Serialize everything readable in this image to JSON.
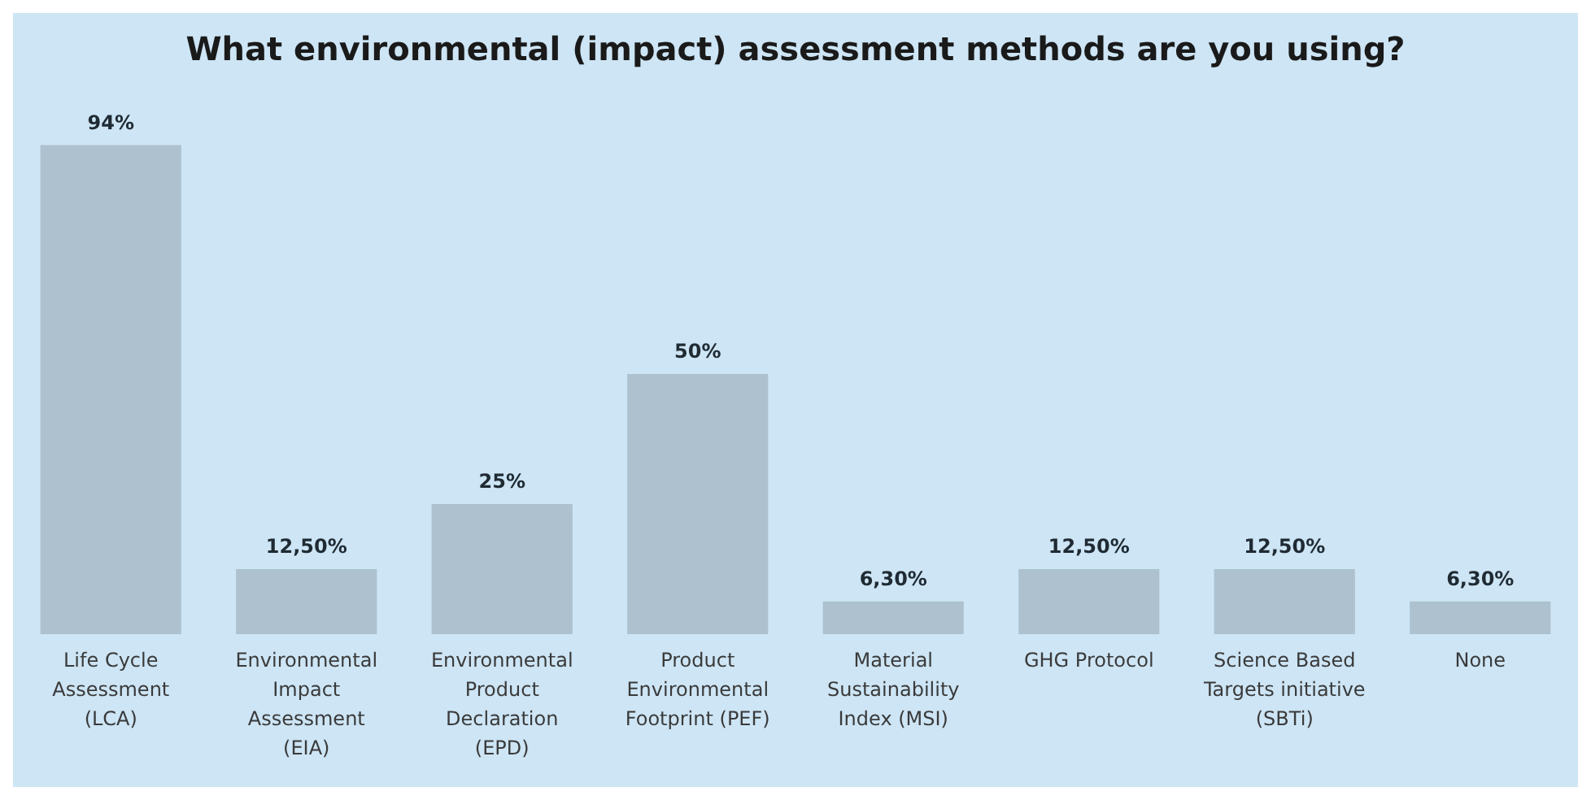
{
  "chart_data": {
    "type": "bar",
    "title": "What environmental (impact) assessment methods are you using?",
    "categories": [
      "Life Cycle Assessment (LCA)",
      "Environmental Impact Assessment (EIA)",
      "Environmental Product Declaration (EPD)",
      "Product Environmental Footprint (PEF)",
      "Material Sustainability Index (MSI)",
      "GHG Protocol",
      "Science Based Targets initiative (SBTi)",
      "None"
    ],
    "values": [
      94,
      12.5,
      25,
      50,
      6.3,
      12.5,
      12.5,
      6.3
    ],
    "color": "#adc1cf",
    "value_labels": [
      "94%",
      "12,50%",
      "25%",
      "50%",
      "6,30%",
      "12,50%",
      "12,50%",
      "6,30%"
    ],
    "tick_labels": "x"
  }
}
